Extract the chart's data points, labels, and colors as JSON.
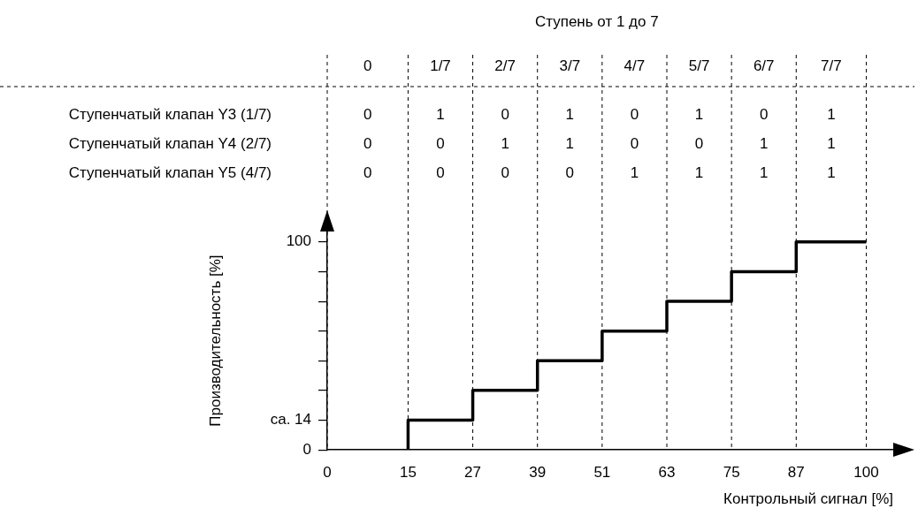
{
  "chart_data": [
    {
      "type": "heatmap",
      "title": "Ступень от 1 до 7",
      "categories": [
        "0",
        "1/7",
        "2/7",
        "3/7",
        "4/7",
        "5/7",
        "6/7",
        "7/7"
      ],
      "y_categories": [
        "Ступенчатый клапан Y3 (1/7)",
        "Ступенчатый клапан Y4 (2/7)",
        "Ступенчатый клапан Y5 (4/7)"
      ],
      "cells": [
        [
          0,
          1,
          0,
          1,
          0,
          1,
          0,
          1
        ],
        [
          0,
          0,
          1,
          1,
          0,
          0,
          1,
          1
        ],
        [
          0,
          0,
          0,
          0,
          1,
          1,
          1,
          1
        ]
      ],
      "data_labels": true
    },
    {
      "type": "step",
      "xlabel": "Контрольный сигнал [%]",
      "ylabel": "Производительность [%]",
      "x": [
        15,
        15,
        27,
        39,
        51,
        63,
        75,
        87,
        100
      ],
      "series": [
        {
          "color": "#000000",
          "values": [
            0,
            14.3,
            28.6,
            42.9,
            57.1,
            71.4,
            85.7,
            100,
            100
          ]
        }
      ],
      "xlim": [
        0,
        105
      ],
      "xticks": [
        0,
        15,
        27,
        39,
        51,
        63,
        75,
        87,
        100
      ],
      "ylim": [
        0,
        105
      ],
      "yticks": [
        0,
        {
          "value": 14.3,
          "label": "ca. 14"
        },
        {
          "value": 28.6,
          "label": null
        },
        {
          "value": 42.9,
          "label": null
        },
        {
          "value": 57.1,
          "label": null
        },
        {
          "value": 71.4,
          "label": null
        },
        {
          "value": 85.7,
          "label": null
        },
        100
      ],
      "grid": "x",
      "legend": false,
      "marker": "none",
      "line_style": "solid"
    }
  ]
}
